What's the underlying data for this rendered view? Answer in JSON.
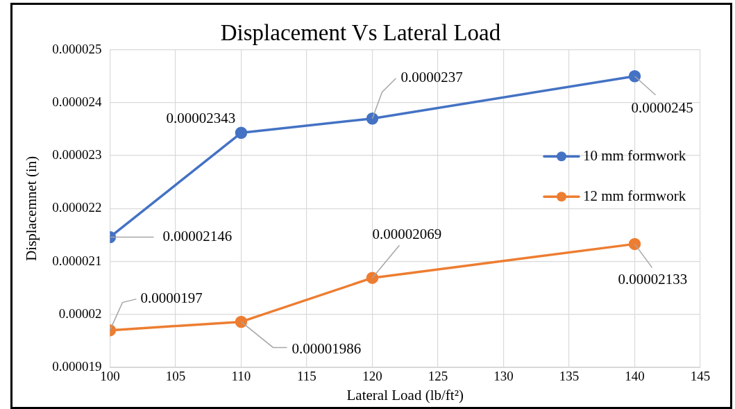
{
  "chart_data": {
    "type": "line",
    "title": "Displacement Vs Lateral Load",
    "xlabel": "Lateral Load (lb/ft²)",
    "ylabel": "Displacemnet (in)",
    "x": [
      100,
      110,
      120,
      140
    ],
    "series": [
      {
        "name": "10 mm formwork",
        "color": "#4472c4",
        "values": [
          2.146e-05,
          2.343e-05,
          2.37e-05,
          2.45e-05
        ],
        "value_labels": [
          "0.00002146",
          "0.00002343",
          "0.0000237",
          "0.0000245"
        ]
      },
      {
        "name": "12 mm formwork",
        "color": "#ed7d31",
        "values": [
          1.97e-05,
          1.986e-05,
          2.069e-05,
          2.133e-05
        ],
        "value_labels": [
          "0.0000197",
          "0.00001986",
          "0.00002069",
          "0.00002133"
        ]
      }
    ],
    "xlim": [
      100,
      145
    ],
    "xticks": [
      100,
      105,
      110,
      115,
      120,
      125,
      130,
      135,
      140,
      145
    ],
    "ylim": [
      1.9e-05,
      2.5e-05
    ],
    "yticks": [
      {
        "value": 1.9e-05,
        "label": "0.000019"
      },
      {
        "value": 2e-05,
        "label": "0.00002"
      },
      {
        "value": 2.1e-05,
        "label": "0.000021"
      },
      {
        "value": 2.2e-05,
        "label": "0.000022"
      },
      {
        "value": 2.3e-05,
        "label": "0.000023"
      },
      {
        "value": 2.4e-05,
        "label": "0.000024"
      },
      {
        "value": 2.5e-05,
        "label": "0.000025"
      }
    ],
    "grid": true,
    "legend": "right",
    "marker": "circle",
    "line_style": "solid"
  }
}
